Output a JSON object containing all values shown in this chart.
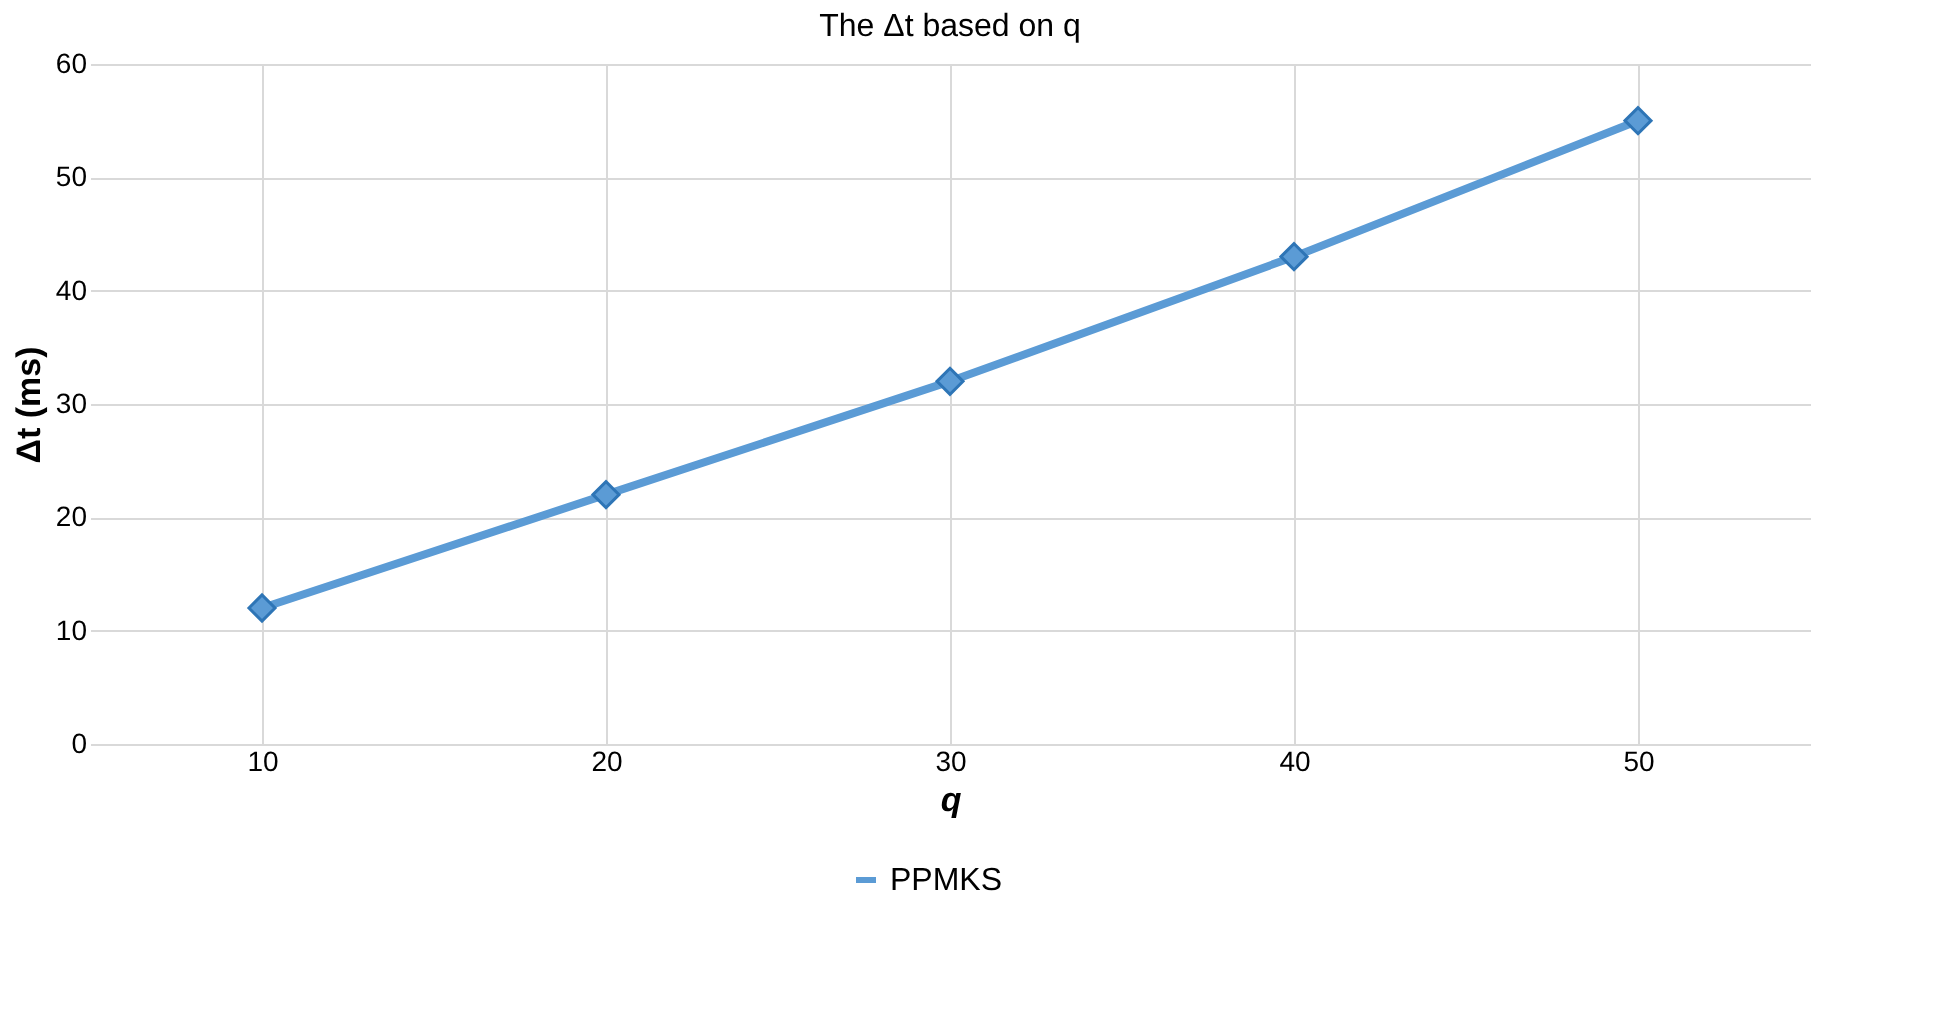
{
  "chart_data": {
    "type": "line",
    "title": "The Δt based on q",
    "xlabel": "q",
    "ylabel": "Δt (ms)",
    "categories": [
      "10",
      "20",
      "30",
      "40",
      "50"
    ],
    "series": [
      {
        "name": "PPMKS",
        "color": "#5b9bd5",
        "values": [
          12,
          22,
          32,
          43,
          55
        ]
      }
    ],
    "ylim": [
      0,
      60
    ],
    "yticks": [
      0,
      10,
      20,
      30,
      40,
      50,
      60
    ],
    "grid": true,
    "legend": "bottom",
    "marker": "diamond",
    "line_style": "solid"
  }
}
